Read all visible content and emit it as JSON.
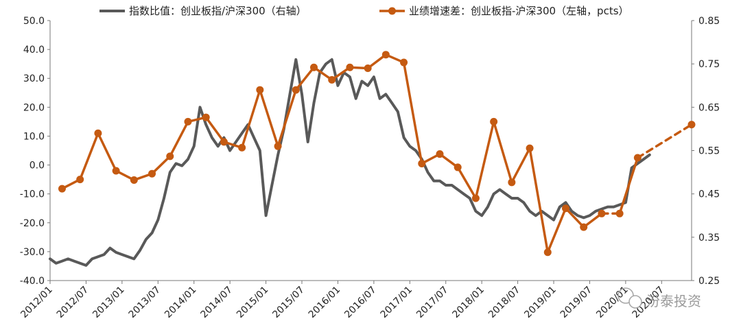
{
  "chart_data": {
    "type": "line",
    "legend": {
      "placement": "top",
      "entries": [
        {
          "series": "ratio",
          "label": "指数比值：创业板指/沪深300（右轴）",
          "color": "#595959"
        },
        {
          "series": "growth",
          "label": "业绩增速差：创业板指-沪深300（左轴，pcts）",
          "color": "#c55a11"
        }
      ]
    },
    "x_axis": {
      "type": "date",
      "range": [
        "2012/01",
        "2020/12"
      ],
      "tick_labels": [
        "2012/01",
        "2012/07",
        "2013/01",
        "2013/07",
        "2014/01",
        "2014/07",
        "2015/01",
        "2015/07",
        "2016/01",
        "2016/07",
        "2017/01",
        "2017/07",
        "2018/01",
        "2018/07",
        "2019/01",
        "2019/07",
        "2020/01",
        "2020/07"
      ]
    },
    "y_left": {
      "range": [
        -40,
        50
      ],
      "tick_labels": [
        "-40.0",
        "-30.0",
        "-20.0",
        "-10.0",
        "0.0",
        "10.0",
        "20.0",
        "30.0",
        "40.0",
        "50.0"
      ]
    },
    "y_right": {
      "range": [
        0.25,
        0.85
      ],
      "tick_labels": [
        "0.25",
        "0.35",
        "0.45",
        "0.55",
        "0.65",
        "0.75",
        "0.85"
      ]
    },
    "grid": false,
    "series": [
      {
        "name": "指数比值：创业板指/沪深300",
        "axis": "right",
        "color": "#595959",
        "points": [
          [
            "2012/01",
            0.3
          ],
          [
            "2012/02",
            0.29
          ],
          [
            "2012/03",
            0.295
          ],
          [
            "2012/04",
            0.3
          ],
          [
            "2012/05",
            0.295
          ],
          [
            "2012/06",
            0.29
          ],
          [
            "2012/07",
            0.285
          ],
          [
            "2012/08",
            0.3
          ],
          [
            "2012/09",
            0.305
          ],
          [
            "2012/10",
            0.31
          ],
          [
            "2012/11",
            0.325
          ],
          [
            "2012/12",
            0.315
          ],
          [
            "2013/01",
            0.31
          ],
          [
            "2013/02",
            0.305
          ],
          [
            "2013/03",
            0.3
          ],
          [
            "2013/04",
            0.32
          ],
          [
            "2013/05",
            0.345
          ],
          [
            "2013/06",
            0.36
          ],
          [
            "2013/07",
            0.39
          ],
          [
            "2013/08",
            0.44
          ],
          [
            "2013/09",
            0.5
          ],
          [
            "2013/10",
            0.52
          ],
          [
            "2013/11",
            0.515
          ],
          [
            "2013/12",
            0.53
          ],
          [
            "2014/01",
            0.56
          ],
          [
            "2014/02",
            0.65
          ],
          [
            "2014/03",
            0.61
          ],
          [
            "2014/04",
            0.58
          ],
          [
            "2014/05",
            0.56
          ],
          [
            "2014/06",
            0.58
          ],
          [
            "2014/07",
            0.55
          ],
          [
            "2014/08",
            0.57
          ],
          [
            "2014/09",
            0.59
          ],
          [
            "2014/10",
            0.61
          ],
          [
            "2014/11",
            0.58
          ],
          [
            "2014/12",
            0.55
          ],
          [
            "2015/01",
            0.4
          ],
          [
            "2015/02",
            0.47
          ],
          [
            "2015/03",
            0.54
          ],
          [
            "2015/04",
            0.6
          ],
          [
            "2015/05",
            0.68
          ],
          [
            "2015/06",
            0.76
          ],
          [
            "2015/07",
            0.68
          ],
          [
            "2015/08",
            0.57
          ],
          [
            "2015/09",
            0.66
          ],
          [
            "2015/10",
            0.73
          ],
          [
            "2015/11",
            0.75
          ],
          [
            "2015/12",
            0.76
          ],
          [
            "2016/01",
            0.7
          ],
          [
            "2016/02",
            0.73
          ],
          [
            "2016/03",
            0.72
          ],
          [
            "2016/04",
            0.67
          ],
          [
            "2016/05",
            0.71
          ],
          [
            "2016/06",
            0.7
          ],
          [
            "2016/07",
            0.72
          ],
          [
            "2016/08",
            0.67
          ],
          [
            "2016/09",
            0.68
          ],
          [
            "2016/10",
            0.66
          ],
          [
            "2016/11",
            0.64
          ],
          [
            "2016/12",
            0.58
          ],
          [
            "2017/01",
            0.56
          ],
          [
            "2017/02",
            0.55
          ],
          [
            "2017/03",
            0.53
          ],
          [
            "2017/04",
            0.5
          ],
          [
            "2017/05",
            0.48
          ],
          [
            "2017/06",
            0.48
          ],
          [
            "2017/07",
            0.47
          ],
          [
            "2017/08",
            0.47
          ],
          [
            "2017/09",
            0.46
          ],
          [
            "2017/10",
            0.45
          ],
          [
            "2017/11",
            0.44
          ],
          [
            "2017/12",
            0.41
          ],
          [
            "2018/01",
            0.4
          ],
          [
            "2018/02",
            0.42
          ],
          [
            "2018/03",
            0.45
          ],
          [
            "2018/04",
            0.46
          ],
          [
            "2018/05",
            0.45
          ],
          [
            "2018/06",
            0.44
          ],
          [
            "2018/07",
            0.44
          ],
          [
            "2018/08",
            0.43
          ],
          [
            "2018/09",
            0.41
          ],
          [
            "2018/10",
            0.4
          ],
          [
            "2018/11",
            0.41
          ],
          [
            "2018/12",
            0.4
          ],
          [
            "2019/01",
            0.39
          ],
          [
            "2019/02",
            0.42
          ],
          [
            "2019/03",
            0.43
          ],
          [
            "2019/04",
            0.41
          ],
          [
            "2019/05",
            0.4
          ],
          [
            "2019/06",
            0.395
          ],
          [
            "2019/07",
            0.4
          ],
          [
            "2019/08",
            0.41
          ],
          [
            "2019/09",
            0.415
          ],
          [
            "2019/10",
            0.42
          ],
          [
            "2019/11",
            0.42
          ],
          [
            "2019/12",
            0.425
          ],
          [
            "2020/01",
            0.43
          ],
          [
            "2020/02",
            0.51
          ],
          [
            "2020/03",
            0.52
          ],
          [
            "2020/04",
            0.53
          ],
          [
            "2020/05",
            0.54
          ]
        ]
      },
      {
        "name": "业绩增速差：创业板指-沪深300",
        "axis": "left",
        "color": "#c55a11",
        "points": [
          [
            "2012/03",
            -8.2
          ],
          [
            "2012/06",
            -5.0
          ],
          [
            "2012/09",
            11.0
          ],
          [
            "2012/12",
            -2.0
          ],
          [
            "2013/03",
            -5.2
          ],
          [
            "2013/06",
            -3.0
          ],
          [
            "2013/09",
            3.0
          ],
          [
            "2013/12",
            15.0
          ],
          [
            "2014/03",
            16.5
          ],
          [
            "2014/06",
            8.0
          ],
          [
            "2014/09",
            6.0
          ],
          [
            "2014/12",
            26.0
          ],
          [
            "2015/03",
            6.5
          ],
          [
            "2015/06",
            26.0
          ],
          [
            "2015/09",
            33.8
          ],
          [
            "2015/12",
            29.5
          ],
          [
            "2016/03",
            33.8
          ],
          [
            "2016/06",
            33.5
          ],
          [
            "2016/09",
            38.2
          ],
          [
            "2016/12",
            35.5
          ],
          [
            "2017/03",
            0.5
          ],
          [
            "2017/06",
            3.8
          ],
          [
            "2017/09",
            -0.8
          ],
          [
            "2017/12",
            -11.5
          ],
          [
            "2018/03",
            15.0
          ],
          [
            "2018/06",
            -6.0
          ],
          [
            "2018/09",
            5.8
          ],
          [
            "2018/12",
            -30.2
          ],
          [
            "2019/03",
            -15.0
          ],
          [
            "2019/06",
            -21.5
          ],
          [
            "2019/09",
            -16.8
          ],
          [
            "2019/12",
            -16.8
          ],
          [
            "2020/03",
            2.5
          ],
          [
            "2020/12",
            14.0
          ]
        ],
        "dashed_segments": [
          {
            "from": "2019/09",
            "to": "2019/12"
          },
          {
            "from": "2020/03",
            "to": "2020/12"
          }
        ]
      }
    ],
    "watermark": "汾泰投资"
  }
}
